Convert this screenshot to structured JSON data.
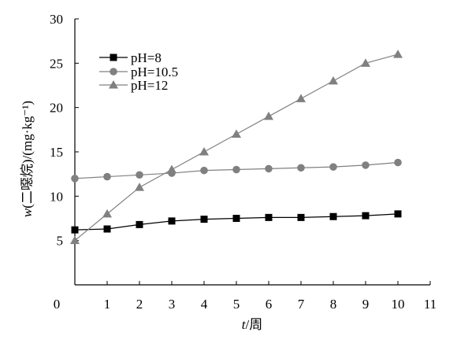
{
  "chart_data": {
    "type": "line",
    "title": "",
    "xlabel_italic": "t",
    "xlabel_rest": "/周",
    "ylabel_italic": "w",
    "ylabel_rest": "(二噁烷)/(mg·kg⁻¹)",
    "xlim": [
      0,
      11
    ],
    "ylim": [
      0,
      30
    ],
    "xticks": [
      0,
      1,
      2,
      3,
      4,
      5,
      6,
      7,
      8,
      9,
      10,
      11
    ],
    "yticks": [
      5,
      10,
      15,
      20,
      25,
      30
    ],
    "x_origin_label": "0",
    "grid": false,
    "legend_position": "top-left",
    "series": [
      {
        "name": "pH=8",
        "marker": "square",
        "color": "#000000",
        "line_color": "#000000",
        "x": [
          0,
          1,
          2,
          3,
          4,
          5,
          6,
          7,
          8,
          9,
          10
        ],
        "y": [
          6.2,
          6.3,
          6.8,
          7.2,
          7.4,
          7.5,
          7.6,
          7.6,
          7.7,
          7.8,
          8.0
        ]
      },
      {
        "name": "pH=10.5",
        "marker": "circle",
        "color": "#808080",
        "line_color": "#808080",
        "x": [
          0,
          1,
          2,
          3,
          4,
          5,
          6,
          7,
          8,
          9,
          10
        ],
        "y": [
          12.0,
          12.2,
          12.4,
          12.6,
          12.9,
          13.0,
          13.1,
          13.2,
          13.3,
          13.5,
          13.8
        ]
      },
      {
        "name": "pH=12",
        "marker": "triangle",
        "color": "#808080",
        "line_color": "#808080",
        "x": [
          0,
          1,
          2,
          3,
          4,
          5,
          6,
          7,
          8,
          9,
          10
        ],
        "y": [
          5.0,
          8.0,
          11.0,
          13.0,
          15.0,
          17.0,
          19.0,
          21.0,
          23.0,
          25.0,
          26.0
        ]
      }
    ]
  }
}
